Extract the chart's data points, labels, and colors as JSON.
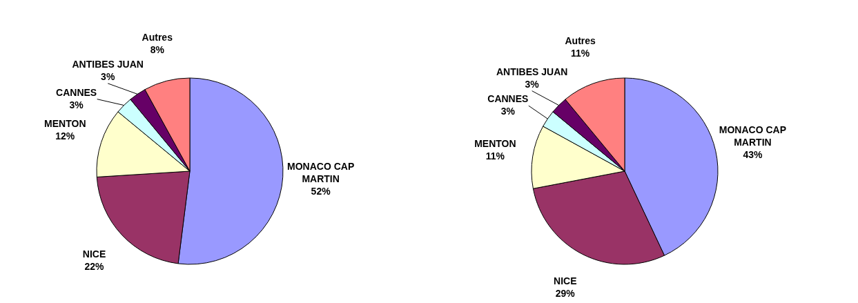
{
  "chart_data": [
    {
      "type": "pie",
      "categories": [
        "MONACO CAP MARTIN",
        "NICE",
        "MENTON",
        "CANNES",
        "ANTIBES JUAN",
        "Autres"
      ],
      "values": [
        52,
        22,
        12,
        3,
        3,
        8
      ],
      "colors": [
        "#9999ff",
        "#993366",
        "#ffffcc",
        "#ccffff",
        "#660066",
        "#ff8080"
      ],
      "value_labels": [
        "52%",
        "22%",
        "12%",
        "3%",
        "3%",
        "8%"
      ],
      "legend": false
    },
    {
      "type": "pie",
      "categories": [
        "MONACO CAP MARTIN",
        "NICE",
        "MENTON",
        "CANNES",
        "ANTIBES JUAN",
        "Autres"
      ],
      "values": [
        43,
        29,
        11,
        3,
        3,
        11
      ],
      "colors": [
        "#9999ff",
        "#993366",
        "#ffffcc",
        "#ccffff",
        "#660066",
        "#ff8080"
      ],
      "value_labels": [
        "43%",
        "29%",
        "11%",
        "3%",
        "3%",
        "11%"
      ],
      "legend": false
    }
  ]
}
